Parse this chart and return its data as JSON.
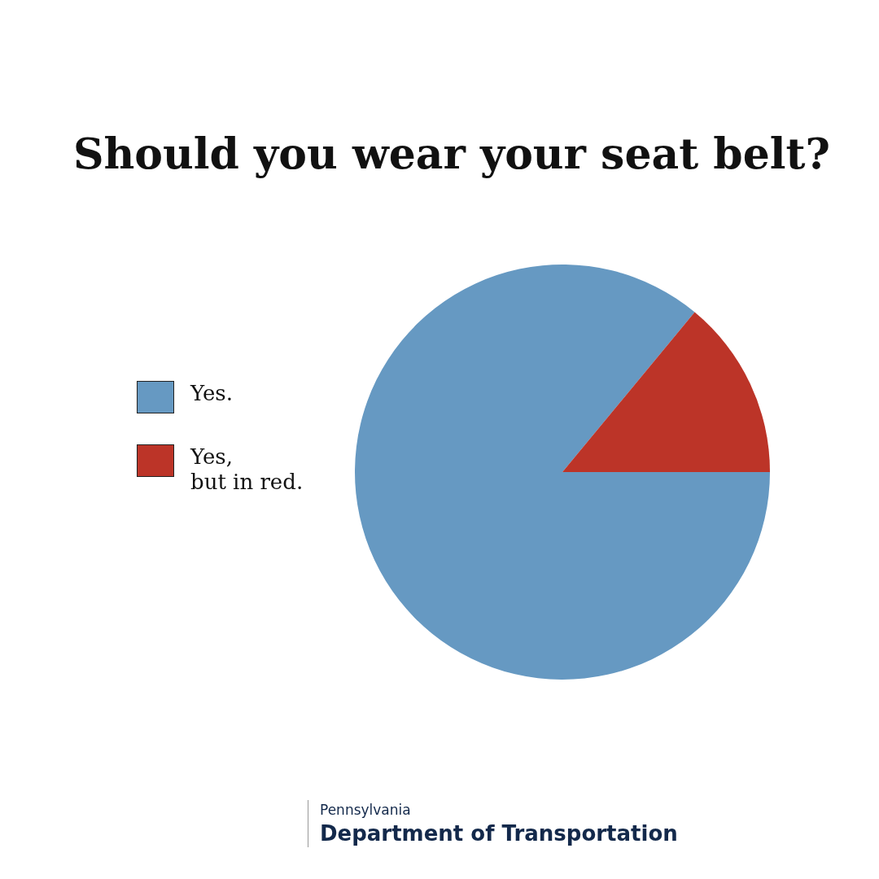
{
  "chart_data": {
    "type": "pie",
    "title": "Should you wear your seat belt?",
    "categories": [
      "Yes.",
      "Yes,\nbut in red."
    ],
    "values": [
      86,
      14
    ],
    "colors": [
      "#6699c2",
      "#bc3428"
    ],
    "legend": "left",
    "annotations": [
      "Pennsylvania",
      "Department of Transportation"
    ]
  }
}
